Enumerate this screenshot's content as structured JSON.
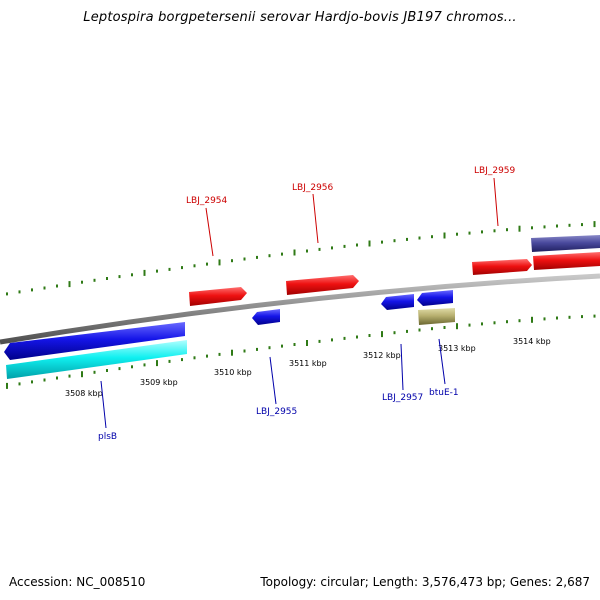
{
  "title": "Leptospira borgpetersenii serovar Hardjo-bovis JB197 chromos...",
  "footer": {
    "accession": "Accession: NC_008510",
    "summary": "Topology: circular; Length: 3,576,473 bp; Genes: 2,687"
  },
  "colors": {
    "backbone": "#8a8a8a",
    "tick": "#2f7a16",
    "forward_label": "#cc0000",
    "reverse_label": "#0000aa",
    "red_gene": "#ee1111",
    "blue_gene": "#1515e8",
    "cyan_gene": "#10f0f0",
    "navy_gene": "#4a4a9e",
    "olive_gene": "#b8b070"
  },
  "scale_labels": [
    "3508 kbp",
    "3509 kbp",
    "3510 kbp",
    "3511 kbp",
    "3512 kbp",
    "3513 kbp",
    "3514 kbp"
  ],
  "gene_labels": {
    "forward": [
      "LBJ_2954",
      "LBJ_2956",
      "LBJ_2959"
    ],
    "reverse": [
      "plsB",
      "LBJ_2955",
      "LBJ_2957",
      "btuE-1"
    ]
  }
}
